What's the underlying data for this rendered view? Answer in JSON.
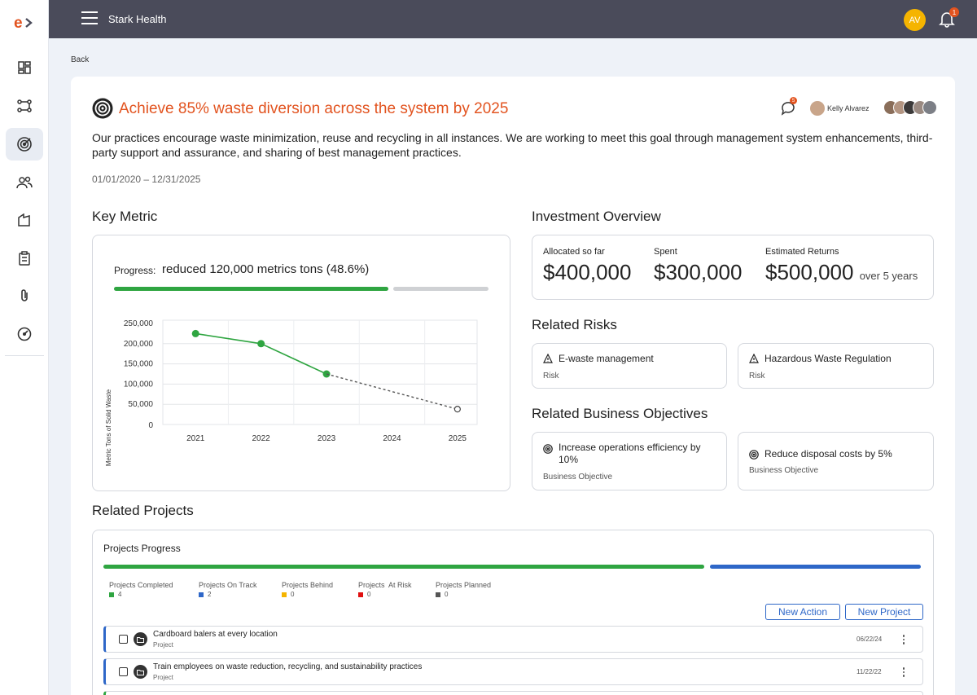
{
  "app": {
    "name": "Stark Health",
    "user_initials": "AV",
    "notification_count": "1"
  },
  "nav": {
    "back_label": "Back"
  },
  "goal": {
    "title": "Achieve 85% waste diversion across the system by 2025",
    "description": "Our practices encourage waste minimization, reuse and recycling in all instances. We are working to meet this goal through management system enhancements, third-party support and assurance, and sharing of best management practices.",
    "dates": "01/01/2020 – 12/31/2025",
    "comment_count": "5",
    "owner": "Kelly Alvarez"
  },
  "key_metric": {
    "section_title": "Key Metric",
    "progress_label": "Progress:",
    "progress_value": "reduced 120,000 metrics tons (48.6%)",
    "progress_fraction": 0.486
  },
  "chart_data": {
    "type": "line",
    "ylabel": "Metric Tons of Solid Waste",
    "xlabel": "",
    "categories": [
      "2021",
      "2022",
      "2023",
      "2024",
      "2025"
    ],
    "ylim": [
      0,
      250000
    ],
    "yticks": [
      "250,000",
      "200,000",
      "150,000",
      "100,000",
      "50,000",
      "0"
    ],
    "series": [
      {
        "style": "solid",
        "color": "#2fa541",
        "points": [
          [
            2021,
            225000
          ],
          [
            2022,
            200000
          ],
          [
            2023,
            125000
          ]
        ]
      },
      {
        "style": "dashed",
        "color": "#555555",
        "points": [
          [
            2023,
            125000
          ],
          [
            2025,
            38000
          ]
        ]
      }
    ],
    "grid": true
  },
  "investment": {
    "section_title": "Investment Overview",
    "allocated_label": "Allocated so far",
    "allocated_value": "$400,000",
    "spent_label": "Spent",
    "spent_value": "$300,000",
    "returns_label": "Estimated Returns",
    "returns_value": "$500,000",
    "returns_suffix": "over 5 years"
  },
  "risks": {
    "section_title": "Related Risks",
    "items": [
      {
        "title": "E-waste management",
        "type": "Risk"
      },
      {
        "title": "Hazardous Waste Regulation",
        "type": "Risk"
      }
    ]
  },
  "objectives": {
    "section_title": "Related Business Objectives",
    "items": [
      {
        "title": "Increase operations efficiency by 10%",
        "type": "Business Objective"
      },
      {
        "title": "Reduce disposal costs by 5%",
        "type": "Business Objective"
      }
    ]
  },
  "projects": {
    "section_title": "Related Projects",
    "progress_title": "Projects Progress",
    "stats": [
      {
        "label": "Projects Completed",
        "count": "4",
        "color": "#2fa541"
      },
      {
        "label": "Projects On Track",
        "count": "2",
        "color": "#2e67c8"
      },
      {
        "label": "Projects Behind",
        "count": "0",
        "color": "#f5b400"
      },
      {
        "label": "Projects  At Risk",
        "count": "0",
        "color": "#e01010"
      },
      {
        "label": "Projects Planned",
        "count": "0",
        "color": "#555555"
      }
    ],
    "new_action_label": "New Action",
    "new_project_label": "New Project",
    "rows": [
      {
        "name": "Cardboard balers at every location",
        "type": "Project",
        "date": "06/22/24"
      },
      {
        "name": "Train employees on waste reduction, recycling, and sustainability practices",
        "type": "Project",
        "date": "11/22/22"
      }
    ]
  }
}
